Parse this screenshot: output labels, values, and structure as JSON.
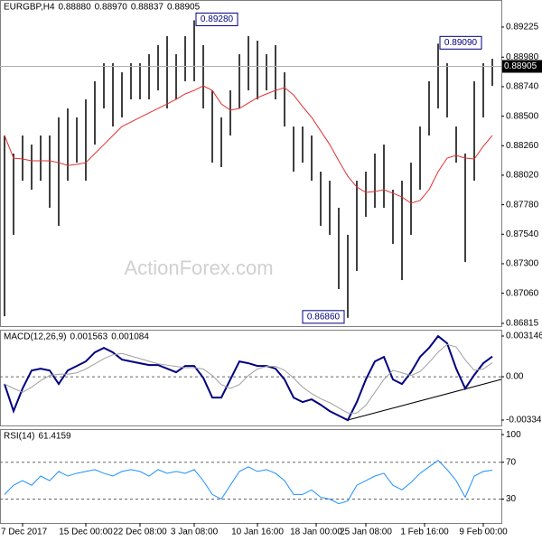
{
  "chart_data": [
    {
      "type": "range_bar",
      "title": "EURGBP,H4",
      "header_values": [
        {
          "value": 0.8888,
          "label": "0.88880"
        },
        {
          "value": 0.8897,
          "label": "0.88970"
        },
        {
          "value": 0.88837,
          "label": "0.88837"
        },
        {
          "value": 0.88905,
          "label": "0.88905"
        }
      ],
      "watermark": "ActionForex.com",
      "color": "#000000",
      "highs": [
        0.88343,
        0.88196,
        0.88343,
        0.88269,
        0.88343,
        0.88343,
        0.8849,
        0.88563,
        0.8849,
        0.88637,
        0.88784,
        0.88931,
        0.88931,
        0.88857,
        0.88931,
        0.88931,
        0.89004,
        0.89078,
        0.89151,
        0.89004,
        0.89151,
        0.8928,
        0.89078,
        0.8871,
        0.8849,
        0.8871,
        0.89004,
        0.89151,
        0.89114,
        0.89004,
        0.89078,
        0.88857,
        0.88416,
        0.88416,
        0.88343,
        0.88049,
        0.87975,
        0.87755,
        0.87535,
        0.87975,
        0.88049,
        0.88196,
        0.88269,
        0.87902,
        0.87975,
        0.88122,
        0.88416,
        0.88784,
        0.8909,
        0.88931,
        0.88416,
        0.88196,
        0.88784,
        0.88931,
        0.88967
      ],
      "lows": [
        0.86873,
        0.87535,
        0.87975,
        0.87902,
        0.87975,
        0.87755,
        0.87608,
        0.87975,
        0.88122,
        0.87975,
        0.88269,
        0.88563,
        0.88416,
        0.8849,
        0.88637,
        0.88637,
        0.88637,
        0.8871,
        0.88563,
        0.88637,
        0.88784,
        0.88784,
        0.88563,
        0.88122,
        0.88086,
        0.88343,
        0.88563,
        0.8871,
        0.88637,
        0.8871,
        0.88637,
        0.88416,
        0.88049,
        0.88122,
        0.87975,
        0.87608,
        0.87535,
        0.87094,
        0.8686,
        0.87241,
        0.87681,
        0.87755,
        0.87755,
        0.87461,
        0.87167,
        0.87535,
        0.87902,
        0.88343,
        0.88563,
        0.8849,
        0.88122,
        0.87314,
        0.87975,
        0.8849,
        0.88747
      ],
      "ma": {
        "color": "#e0302f",
        "values": [
          0.88343,
          0.88159,
          0.88152,
          0.88137,
          0.88137,
          0.88137,
          0.88122,
          0.881,
          0.88108,
          0.88122,
          0.88196,
          0.88269,
          0.88343,
          0.88416,
          0.88453,
          0.8849,
          0.88527,
          0.88563,
          0.886,
          0.88637,
          0.88681,
          0.8871,
          0.88747,
          0.8871,
          0.886,
          0.88549,
          0.88563,
          0.88607,
          0.88651,
          0.88681,
          0.8871,
          0.88732,
          0.88673,
          0.88578,
          0.8849,
          0.8838,
          0.88269,
          0.88137,
          0.88012,
          0.87924,
          0.8788,
          0.87887,
          0.87902,
          0.87873,
          0.87843,
          0.87792,
          0.87814,
          0.87902,
          0.88049,
          0.88159,
          0.88181,
          0.88159,
          0.88152,
          0.88255,
          0.88343
        ]
      },
      "last_price": {
        "value": 0.88905,
        "label": "0.88905"
      },
      "annotations": [
        {
          "value": 0.8928,
          "label": "0.89280"
        },
        {
          "value": 0.8909,
          "label": "0.89090"
        },
        {
          "value": 0.8686,
          "label": "0.86860"
        }
      ],
      "ylim": [
        0.868,
        0.89445
      ],
      "yticks": [
        {
          "value": 0.89225,
          "label": "0.89225"
        },
        {
          "value": 0.8898,
          "label": "0.88980"
        },
        {
          "value": 0.8874,
          "label": "0.88740"
        },
        {
          "value": 0.885,
          "label": "0.88500"
        },
        {
          "value": 0.8826,
          "label": "0.88260"
        },
        {
          "value": 0.8802,
          "label": "0.88020"
        },
        {
          "value": 0.8778,
          "label": "0.87780"
        },
        {
          "value": 0.8754,
          "label": "0.87540"
        },
        {
          "value": 0.873,
          "label": "0.87300"
        },
        {
          "value": 0.8706,
          "label": "0.87060"
        },
        {
          "value": 0.86815,
          "label": "0.86815"
        }
      ]
    },
    {
      "type": "line",
      "title": "MACD(12,26,9)",
      "header_values": [
        0.001563,
        0.001084
      ],
      "series": [
        {
          "color": "#000080",
          "width": 2,
          "values": [
            -0.000558,
            -0.002651,
            -0.000907,
            0.000488,
            0.000628,
            0.000488,
            -0.000558,
            0.000488,
            0.000837,
            0.001186,
            0.001884,
            0.002232,
            0.001884,
            0.001326,
            0.001186,
            0.001046,
            0.000907,
            0.000907,
            0.000628,
            0.000349,
            0.000837,
            0.000837,
            -7e-05,
            -0.001605,
            -0.001605,
            -0.000209,
            0.001186,
            0.001046,
            0.000837,
            0.000837,
            0.000628,
            -0.000209,
            -0.001605,
            -0.001954,
            -0.001744,
            -0.002163,
            -0.002651,
            -0.003,
            -0.003349,
            -0.001954,
            -0.000209,
            0.001186,
            0.001535,
            -0.000209,
            -0.000558,
            0.000349,
            0.001535,
            0.002232,
            0.003139,
            0.002581,
            0.000628,
            -0.000907,
            0.00014,
            0.001046,
            0.001563
          ]
        },
        {
          "color": "#a0a0a0",
          "width": 1,
          "values": [
            -0.000558,
            -0.0009,
            -0.0012,
            -0.0008,
            -0.0003,
            0.0001,
            0.0002,
            0.0002,
            0.0003,
            0.0006,
            0.001,
            0.0014,
            0.0017,
            0.0018,
            0.0016,
            0.0014,
            0.0012,
            0.001,
            0.0009,
            0.0008,
            0.0007,
            0.0007,
            0.0006,
            0.0001,
            -0.0006,
            -0.0009,
            -0.0006,
            0.0001,
            0.0006,
            0.0008,
            0.0008,
            0.0005,
            -0.0001,
            -0.0008,
            -0.0013,
            -0.0017,
            -0.002,
            -0.0024,
            -0.0028,
            -0.0028,
            -0.0022,
            -0.0012,
            -0.0002,
            0.0005,
            0.0003,
            0.0001,
            0.0004,
            0.0011,
            0.0019,
            0.0025,
            0.0023,
            0.0013,
            0.0005,
            0.0006,
            0.001084
          ]
        }
      ],
      "reference_lines": [
        0
      ],
      "ylim": [
        -0.003691,
        0.003634
      ],
      "yticks": [
        0.003146,
        {
          "value": 0,
          "label": "0.00"
        },
        -0.003342
      ]
    },
    {
      "type": "line",
      "title": "RSI(14)",
      "header_values": [
        61.4159
      ],
      "series": [
        {
          "color": "#1e90ff",
          "width": 1,
          "values": [
            35,
            45,
            50,
            45,
            55,
            50,
            60,
            55,
            58,
            60,
            62,
            58,
            55,
            60,
            62,
            60,
            55,
            62,
            58,
            60,
            58,
            62,
            50,
            35,
            30,
            45,
            60,
            65,
            60,
            62,
            58,
            50,
            35,
            35,
            40,
            32,
            30,
            25,
            28,
            45,
            50,
            55,
            58,
            45,
            40,
            48,
            58,
            65,
            72,
            62,
            50,
            32,
            55,
            60,
            61.4159
          ]
        }
      ],
      "reference_lines": [
        70,
        30
      ],
      "ylim": [
        5,
        106
      ],
      "yticks": [
        100,
        70,
        30
      ],
      "xticks": [
        {
          "value": 2,
          "label": "7 Dec 2017"
        },
        {
          "value": 9,
          "label": "15 Dec 00:00"
        },
        {
          "value": 15,
          "label": "22 Dec 08:00"
        },
        {
          "value": 21,
          "label": "3 Jan 08:00"
        },
        {
          "value": 28,
          "label": "10 Jan 16:00"
        },
        {
          "value": 34.5,
          "label": "18 Jan 00:00"
        },
        {
          "value": 40,
          "label": "25 Jan 08:00"
        },
        {
          "value": 46.5,
          "label": "1 Feb 16:00"
        },
        {
          "value": 53,
          "label": "9 Feb 00:00"
        }
      ]
    }
  ]
}
